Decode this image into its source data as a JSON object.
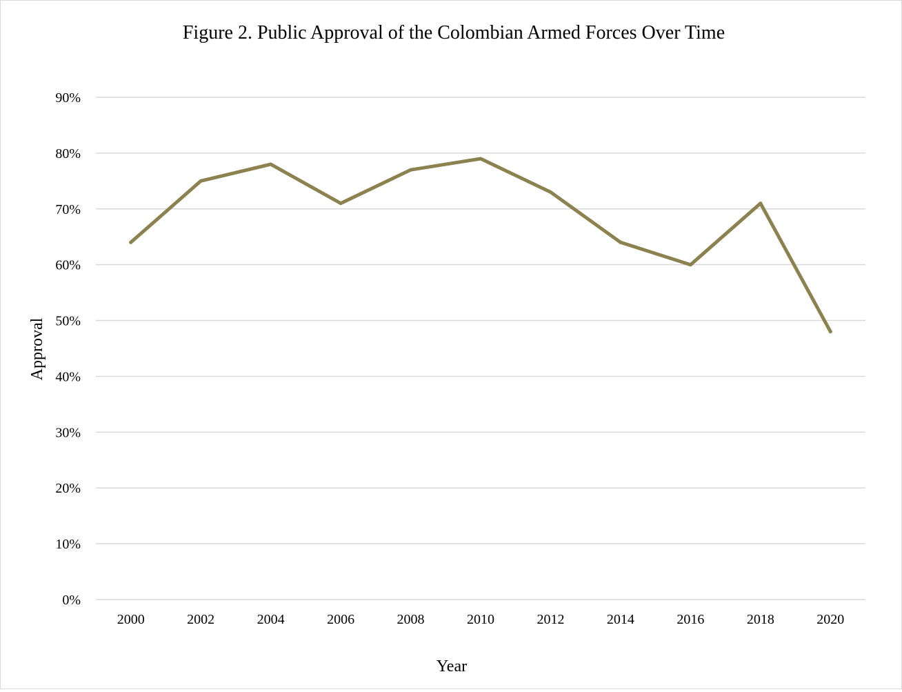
{
  "chart_data": {
    "type": "line",
    "title": "Figure 2. Public Approval of the Colombian Armed Forces Over Time",
    "xlabel": "Year",
    "ylabel": "Approval",
    "x": [
      "2000",
      "2002",
      "2004",
      "2006",
      "2008",
      "2010",
      "2012",
      "2014",
      "2016",
      "2018",
      "2020"
    ],
    "series": [
      {
        "values": [
          64,
          75,
          78,
          71,
          77,
          79,
          73,
          64,
          60,
          71,
          48
        ],
        "color": "#8b8250"
      }
    ],
    "ylim": [
      0,
      90
    ],
    "y_ticks": [
      "0%",
      "10%",
      "20%",
      "30%",
      "40%",
      "50%",
      "60%",
      "70%",
      "80%",
      "90%"
    ],
    "grid": "horizontal",
    "legend": "none",
    "colors": {
      "line": "#8b8250",
      "grid": "#d9d9d9",
      "border": "#d9d9d9"
    }
  }
}
